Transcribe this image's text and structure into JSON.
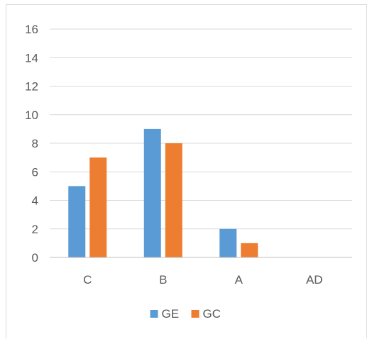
{
  "chart_data": {
    "type": "bar",
    "categories": [
      "C",
      "B",
      "A",
      "AD"
    ],
    "series": [
      {
        "name": "GE",
        "values": [
          5,
          9,
          2,
          0
        ],
        "color": "#5b9bd5"
      },
      {
        "name": "GC",
        "values": [
          7,
          8,
          1,
          0
        ],
        "color": "#ed7d31"
      }
    ],
    "ylim": [
      0,
      16
    ],
    "yticks": [
      0,
      2,
      4,
      6,
      8,
      10,
      12,
      14,
      16
    ],
    "grid": true,
    "legend": "bottom",
    "gridline_color": "#d9d9d9",
    "axis_line_color": "#bfbfbf",
    "text_color": "#595959"
  }
}
